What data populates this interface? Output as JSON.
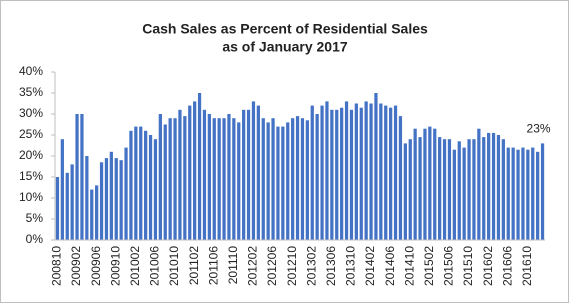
{
  "chart_data": {
    "type": "bar",
    "title": [
      "Cash Sales as Percent of Residential Sales",
      "as of January 2017"
    ],
    "categories": [
      "200810",
      null,
      null,
      null,
      "200902",
      null,
      null,
      null,
      "200906",
      null,
      null,
      null,
      "200910",
      null,
      null,
      null,
      "201002",
      null,
      null,
      null,
      "201006",
      null,
      null,
      null,
      "201010",
      null,
      null,
      null,
      "201102",
      null,
      null,
      null,
      "201106",
      null,
      null,
      null,
      "201110",
      null,
      null,
      null,
      "201202",
      null,
      null,
      null,
      "201206",
      null,
      null,
      null,
      "201210",
      null,
      null,
      null,
      "201302",
      null,
      null,
      null,
      "201306",
      null,
      null,
      null,
      "201310",
      null,
      null,
      null,
      "201402",
      null,
      null,
      null,
      "201406",
      null,
      null,
      null,
      "201410",
      null,
      null,
      null,
      "201502",
      null,
      null,
      null,
      "201506",
      null,
      null,
      null,
      "201510",
      null,
      null,
      null,
      "201602",
      null,
      null,
      null,
      "201606",
      null,
      null,
      null,
      "201610",
      null,
      null,
      null
    ],
    "values": [
      15,
      24,
      16,
      18,
      30,
      30,
      20,
      12,
      13,
      18.5,
      19.5,
      21,
      19.5,
      19,
      22,
      26,
      27,
      27,
      26,
      25,
      24,
      30,
      27.5,
      29,
      29,
      31,
      29.5,
      32,
      33,
      35,
      31,
      30,
      29,
      29,
      29,
      30,
      29,
      28,
      31,
      31,
      33,
      32,
      29,
      28,
      29,
      27,
      27,
      28,
      29,
      29.5,
      29,
      28.5,
      32,
      30,
      32,
      33,
      31,
      31,
      31.5,
      33,
      31,
      32.5,
      31.5,
      33,
      32.5,
      35,
      32.5,
      32,
      31.5,
      32,
      29.5,
      23,
      24,
      26.5,
      24.5,
      26.5,
      27,
      26.5,
      24.5,
      24,
      24,
      21.5,
      23.5,
      22,
      24,
      24,
      26.5,
      24.5,
      25.5,
      25.5,
      25,
      24,
      22,
      22,
      21.5,
      22,
      21.5,
      22,
      21,
      23
    ],
    "value_labels": [
      null,
      null,
      null,
      null,
      null,
      null,
      null,
      null,
      null,
      null,
      null,
      null,
      null,
      null,
      null,
      null,
      null,
      null,
      null,
      null,
      null,
      null,
      null,
      null,
      null,
      null,
      null,
      null,
      null,
      null,
      null,
      null,
      null,
      null,
      null,
      null,
      null,
      null,
      null,
      null,
      null,
      null,
      null,
      null,
      null,
      null,
      null,
      null,
      null,
      null,
      null,
      null,
      null,
      null,
      null,
      null,
      null,
      null,
      null,
      null,
      null,
      null,
      null,
      null,
      null,
      null,
      null,
      null,
      null,
      null,
      null,
      null,
      null,
      null,
      null,
      null,
      null,
      null,
      null,
      null,
      null,
      null,
      null,
      null,
      null,
      null,
      null,
      null,
      null,
      null,
      null,
      null,
      null,
      null,
      null,
      null,
      null,
      null,
      null,
      "23%"
    ],
    "color": "#4472c4",
    "ylim": [
      0,
      40
    ],
    "yticks": [
      {
        "value": 0,
        "label": "0%"
      },
      {
        "value": 5,
        "label": "5%"
      },
      {
        "value": 10,
        "label": "10%"
      },
      {
        "value": 15,
        "label": "15%"
      },
      {
        "value": 20,
        "label": "20%"
      },
      {
        "value": 25,
        "label": "25%"
      },
      {
        "value": 30,
        "label": "30%"
      },
      {
        "value": 35,
        "label": "35%"
      },
      {
        "value": 40,
        "label": "40%"
      }
    ],
    "grid": false
  }
}
